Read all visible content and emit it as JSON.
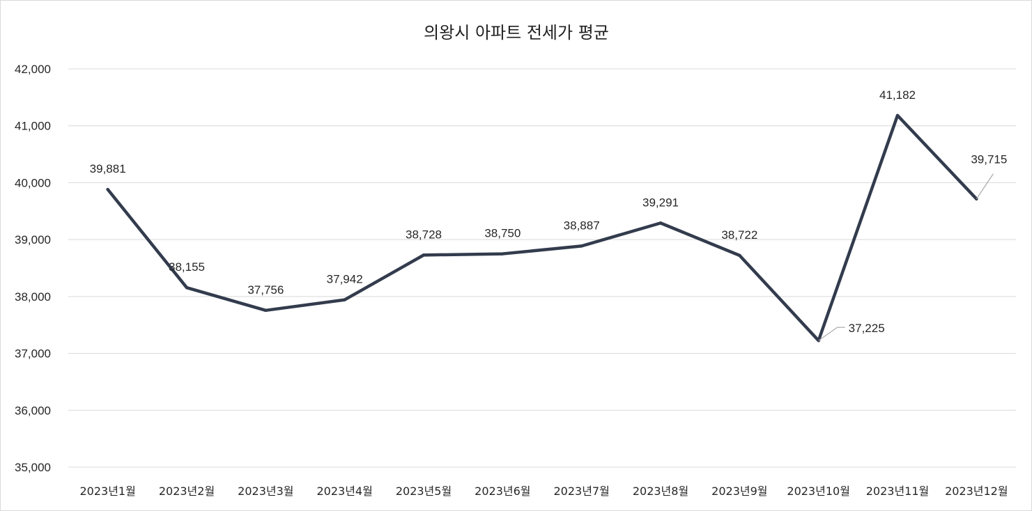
{
  "chart_data": {
    "type": "line",
    "title": "의왕시 아파트 전세가 평균",
    "xlabel": "",
    "ylabel": "",
    "ylim": [
      35000,
      42000
    ],
    "yticks": [
      35000,
      36000,
      37000,
      38000,
      39000,
      40000,
      41000,
      42000
    ],
    "ytick_labels": [
      "35,000",
      "36,000",
      "37,000",
      "38,000",
      "39,000",
      "40,000",
      "41,000",
      "42,000"
    ],
    "grid": true,
    "legend": "none",
    "categories": [
      "2023년1월",
      "2023년2월",
      "2023년3월",
      "2023년4월",
      "2023년5월",
      "2023년6월",
      "2023년7월",
      "2023년8월",
      "2023년9월",
      "2023년10월",
      "2023년11월",
      "2023년12월"
    ],
    "series": [
      {
        "name": "전세가 평균",
        "color": "#333c4d",
        "values": [
          39881,
          38155,
          37756,
          37942,
          38728,
          38750,
          38887,
          39291,
          38722,
          37225,
          41182,
          39715
        ],
        "labels": [
          "39,881",
          "38,155",
          "37,756",
          "37,942",
          "38,728",
          "38,750",
          "38,887",
          "39,291",
          "38,722",
          "37,225",
          "41,182",
          "39,715"
        ]
      }
    ]
  }
}
